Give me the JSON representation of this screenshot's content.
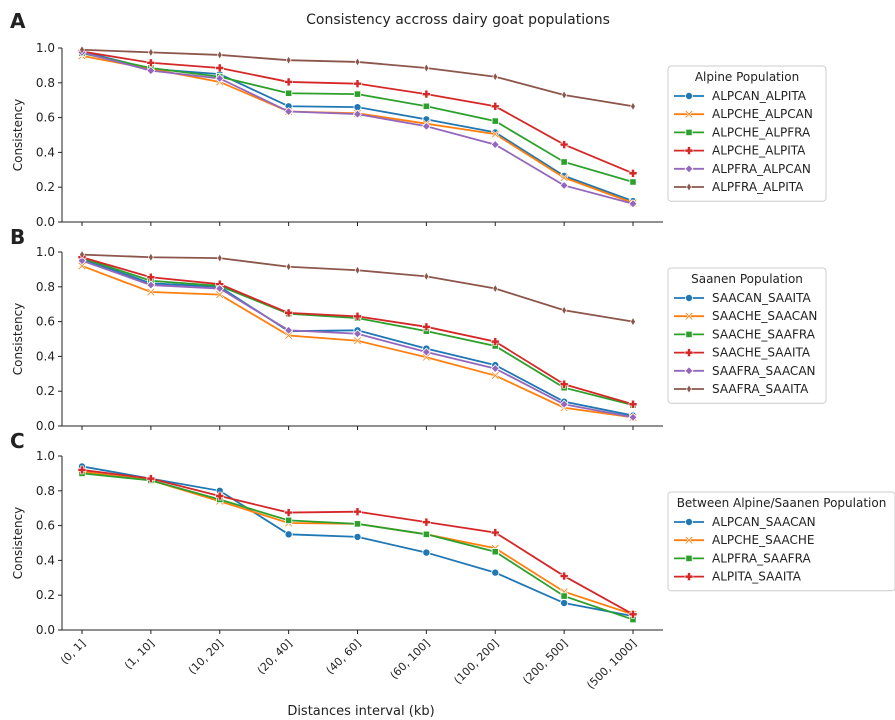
{
  "figure": {
    "title": "Consistency accross dairy goat populations",
    "xlabel": "Distances interval (kb)"
  },
  "chart_data": [
    {
      "type": "line",
      "panel_label": "A",
      "ylabel": "Consistency",
      "ylim": [
        0,
        1.0
      ],
      "yticks": [
        "0.0",
        "0.2",
        "0.4",
        "0.6",
        "0.8",
        "1.0"
      ],
      "categories": [
        "(0, 1]",
        "(1, 10]",
        "(10, 20]",
        "(20, 40]",
        "(40, 60]",
        "(60, 100]",
        "(100, 200]",
        "(200, 500]",
        "(500, 1000]"
      ],
      "legend_title": "Alpine Population",
      "legend_position": "right",
      "series": [
        {
          "name": "ALPCAN_ALPITA",
          "color": "#1f77b4",
          "marker": "circle",
          "values": [
            0.98,
            0.88,
            0.85,
            0.665,
            0.66,
            0.59,
            0.515,
            0.265,
            0.12
          ]
        },
        {
          "name": "ALPCHE_ALPCAN",
          "color": "#ff7f0e",
          "marker": "x",
          "values": [
            0.955,
            0.88,
            0.805,
            0.635,
            0.625,
            0.565,
            0.505,
            0.255,
            0.11
          ]
        },
        {
          "name": "ALPCHE_ALPFRA",
          "color": "#2ca02c",
          "marker": "square",
          "values": [
            0.97,
            0.885,
            0.835,
            0.74,
            0.735,
            0.665,
            0.58,
            0.345,
            0.23
          ]
        },
        {
          "name": "ALPCHE_ALPITA",
          "color": "#d62728",
          "marker": "plus",
          "values": [
            0.98,
            0.915,
            0.885,
            0.805,
            0.795,
            0.735,
            0.665,
            0.445,
            0.28
          ]
        },
        {
          "name": "ALPFRA_ALPCAN",
          "color": "#9467bd",
          "marker": "diamond",
          "values": [
            0.975,
            0.87,
            0.825,
            0.635,
            0.62,
            0.55,
            0.445,
            0.21,
            0.105
          ]
        },
        {
          "name": "ALPFRA_ALPITA",
          "color": "#8c564b",
          "marker": "thin_diamond",
          "values": [
            0.99,
            0.975,
            0.96,
            0.93,
            0.92,
            0.885,
            0.835,
            0.73,
            0.665
          ]
        }
      ]
    },
    {
      "type": "line",
      "panel_label": "B",
      "ylabel": "Consistency",
      "ylim": [
        0,
        1.0
      ],
      "yticks": [
        "0.0",
        "0.2",
        "0.4",
        "0.6",
        "0.8",
        "1.0"
      ],
      "categories": [
        "(0, 1]",
        "(1, 10]",
        "(10, 20]",
        "(20, 40]",
        "(40, 60]",
        "(60, 100]",
        "(100, 200]",
        "(200, 500]",
        "(500, 1000]"
      ],
      "legend_title": "Saanen Population",
      "legend_position": "right",
      "series": [
        {
          "name": "SAACAN_SAAITA",
          "color": "#1f77b4",
          "marker": "circle",
          "values": [
            0.96,
            0.82,
            0.8,
            0.545,
            0.55,
            0.445,
            0.35,
            0.14,
            0.06
          ]
        },
        {
          "name": "SAACHE_SAACAN",
          "color": "#ff7f0e",
          "marker": "x",
          "values": [
            0.92,
            0.77,
            0.755,
            0.52,
            0.49,
            0.395,
            0.29,
            0.105,
            0.05
          ]
        },
        {
          "name": "SAACHE_SAAFRA",
          "color": "#2ca02c",
          "marker": "square",
          "values": [
            0.965,
            0.835,
            0.805,
            0.645,
            0.62,
            0.545,
            0.46,
            0.22,
            0.12
          ]
        },
        {
          "name": "SAACHE_SAAITA",
          "color": "#d62728",
          "marker": "plus",
          "values": [
            0.97,
            0.855,
            0.815,
            0.65,
            0.63,
            0.57,
            0.485,
            0.24,
            0.125
          ]
        },
        {
          "name": "SAAFRA_SAACAN",
          "color": "#9467bd",
          "marker": "diamond",
          "values": [
            0.95,
            0.81,
            0.79,
            0.55,
            0.53,
            0.425,
            0.33,
            0.125,
            0.05
          ]
        },
        {
          "name": "SAAFRA_SAAITA",
          "color": "#8c564b",
          "marker": "thin_diamond",
          "values": [
            0.985,
            0.97,
            0.965,
            0.915,
            0.895,
            0.86,
            0.79,
            0.665,
            0.6
          ]
        }
      ]
    },
    {
      "type": "line",
      "panel_label": "C",
      "ylabel": "Consistency",
      "ylim": [
        0,
        1.0
      ],
      "yticks": [
        "0.0",
        "0.2",
        "0.4",
        "0.6",
        "0.8",
        "1.0"
      ],
      "categories": [
        "(0, 1]",
        "(1, 10]",
        "(10, 20]",
        "(20, 40]",
        "(40, 60]",
        "(60, 100]",
        "(100, 200]",
        "(200, 500]",
        "(500, 1000]"
      ],
      "legend_title": "Between Alpine/Saanen Population",
      "legend_position": "right",
      "series": [
        {
          "name": "ALPCAN_SAACAN",
          "color": "#1f77b4",
          "marker": "circle",
          "values": [
            0.94,
            0.87,
            0.8,
            0.55,
            0.535,
            0.445,
            0.33,
            0.155,
            0.08
          ]
        },
        {
          "name": "ALPCHE_SAACHE",
          "color": "#ff7f0e",
          "marker": "x",
          "values": [
            0.91,
            0.86,
            0.74,
            0.615,
            0.61,
            0.55,
            0.47,
            0.22,
            0.09
          ]
        },
        {
          "name": "ALPFRA_SAAFRA",
          "color": "#2ca02c",
          "marker": "square",
          "values": [
            0.9,
            0.86,
            0.75,
            0.63,
            0.61,
            0.55,
            0.45,
            0.195,
            0.06
          ]
        },
        {
          "name": "ALPITA_SAAITA",
          "color": "#d62728",
          "marker": "plus",
          "values": [
            0.92,
            0.87,
            0.77,
            0.675,
            0.68,
            0.62,
            0.56,
            0.31,
            0.09
          ]
        }
      ]
    }
  ]
}
